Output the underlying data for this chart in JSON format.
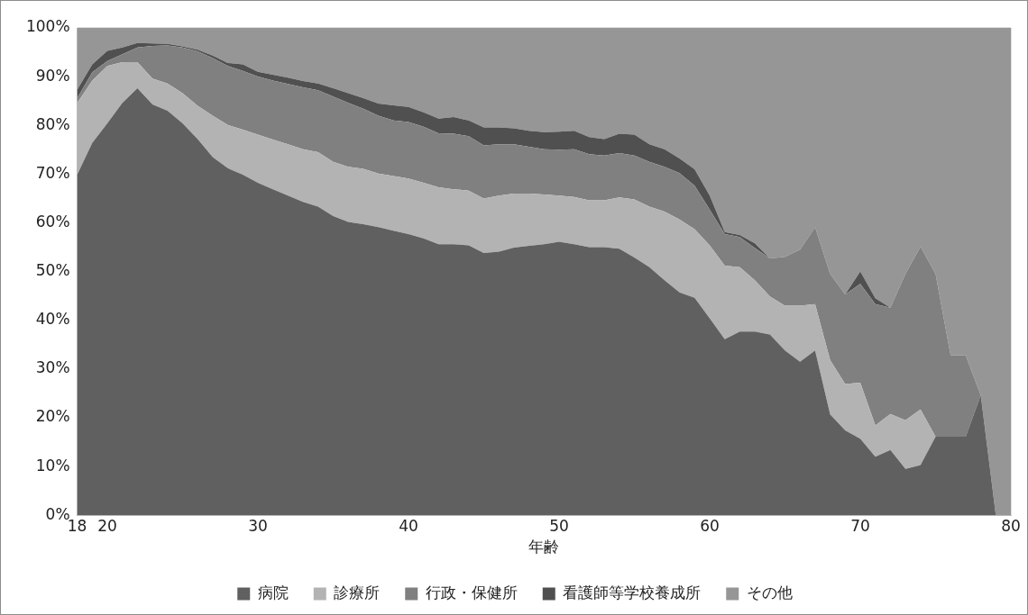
{
  "chart_data": {
    "type": "area",
    "stacked": true,
    "xlabel": "年齢",
    "legend": "bottom",
    "grid": false,
    "x": [
      18,
      19,
      20,
      21,
      22,
      23,
      24,
      25,
      26,
      27,
      28,
      29,
      30,
      31,
      32,
      33,
      34,
      35,
      36,
      37,
      38,
      39,
      40,
      41,
      42,
      43,
      44,
      45,
      46,
      47,
      48,
      49,
      50,
      51,
      52,
      53,
      54,
      55,
      56,
      57,
      58,
      59,
      60,
      61,
      62,
      63,
      64,
      65,
      66,
      67,
      68,
      69,
      70,
      71,
      72,
      73,
      74,
      75,
      76,
      77,
      78,
      79,
      80
    ],
    "xlim": [
      18,
      80
    ],
    "xticks": [
      18,
      20,
      30,
      40,
      50,
      60,
      70,
      80
    ],
    "ylim": [
      0,
      100
    ],
    "yticks": [
      {
        "value": 0,
        "label": "0%"
      },
      {
        "value": 10,
        "label": "10%"
      },
      {
        "value": 20,
        "label": "20%"
      },
      {
        "value": 30,
        "label": "30%"
      },
      {
        "value": 40,
        "label": "40%"
      },
      {
        "value": 50,
        "label": "50%"
      },
      {
        "value": 60,
        "label": "60%"
      },
      {
        "value": 70,
        "label": "70%"
      },
      {
        "value": 80,
        "label": "80%"
      },
      {
        "value": 90,
        "label": "90%"
      },
      {
        "value": 100,
        "label": "100%"
      }
    ],
    "series": [
      {
        "name": "病院",
        "color": "#606060",
        "values": [
          69.9,
          76.4,
          80.4,
          84.6,
          87.6,
          84.3,
          83.0,
          80.4,
          77.2,
          73.5,
          71.2,
          69.9,
          68.2,
          66.9,
          65.6,
          64.3,
          63.3,
          61.4,
          60.2,
          59.7,
          59.1,
          58.4,
          57.7,
          56.8,
          55.6,
          55.6,
          55.4,
          53.8,
          54.1,
          54.9,
          55.3,
          55.6,
          56.1,
          55.6,
          55.0,
          55.0,
          54.7,
          52.9,
          50.9,
          48.2,
          45.7,
          44.6,
          40.4,
          36.1,
          37.7,
          37.7,
          37.1,
          33.8,
          31.5,
          33.8,
          20.7,
          17.4,
          15.7,
          12.0,
          13.4,
          9.5,
          10.3,
          16.1,
          16.1,
          16.1,
          24.6,
          0,
          0
        ]
      },
      {
        "name": "診療所",
        "color": "#b3b3b3",
        "values": [
          14.7,
          12.8,
          11.8,
          8.4,
          5.4,
          5.3,
          5.6,
          6.2,
          6.8,
          8.5,
          8.9,
          9.2,
          9.9,
          10.2,
          10.5,
          10.8,
          11.2,
          11.1,
          11.3,
          11.4,
          11.0,
          11.2,
          11.4,
          11.4,
          11.7,
          11.3,
          11.2,
          11.2,
          11.5,
          11.1,
          10.7,
          10.2,
          9.5,
          9.7,
          9.6,
          9.6,
          10.5,
          11.9,
          12.4,
          14.1,
          15.0,
          14.1,
          15.0,
          15.1,
          13.2,
          10.5,
          7.8,
          9.2,
          11.5,
          9.5,
          11.1,
          9.5,
          11.5,
          6.4,
          7.4,
          10.0,
          11.4,
          0,
          0,
          0,
          0,
          0,
          0
        ]
      },
      {
        "name": "行政・保健所",
        "color": "#808080",
        "values": [
          1.0,
          1.7,
          1.0,
          1.6,
          3.0,
          6.7,
          7.8,
          9.4,
          11.2,
          11.8,
          12.1,
          12.1,
          11.9,
          12.1,
          12.4,
          12.7,
          12.7,
          13.4,
          13.1,
          12.3,
          11.9,
          11.4,
          11.6,
          11.5,
          11.1,
          11.4,
          11.2,
          10.9,
          10.5,
          10.1,
          9.6,
          9.3,
          9.4,
          9.8,
          9.5,
          9.2,
          9.1,
          9.0,
          9.2,
          9.2,
          9.5,
          8.9,
          7.3,
          6.5,
          6.2,
          6.6,
          7.8,
          10.0,
          11.5,
          15.8,
          17.7,
          18.4,
          20.3,
          24.9,
          21.8,
          30.0,
          33.4,
          33.4,
          16.7,
          16.7,
          0,
          0,
          0
        ]
      },
      {
        "name": "看護師等学校養成所",
        "color": "#505050",
        "values": [
          1.7,
          1.6,
          2.1,
          1.4,
          0.9,
          0.5,
          0.3,
          0.2,
          0.3,
          0.5,
          0.6,
          1.3,
          1.0,
          1.2,
          1.3,
          1.3,
          1.4,
          1.7,
          2.0,
          2.2,
          2.5,
          3.1,
          3.1,
          3.0,
          3.0,
          3.4,
          3.2,
          3.7,
          3.5,
          3.3,
          3.3,
          3.5,
          3.7,
          3.8,
          3.5,
          3.4,
          4.0,
          4.3,
          3.6,
          3.6,
          3.0,
          3.4,
          2.9,
          0.4,
          0.4,
          1.0,
          0,
          0,
          0,
          0,
          0,
          0,
          2.5,
          1.2,
          0,
          0,
          0,
          0,
          0,
          0,
          0,
          0,
          0
        ]
      },
      {
        "name": "その他",
        "color": "#969696",
        "values": [
          12.7,
          7.5,
          4.7,
          4.0,
          3.1,
          3.2,
          3.3,
          3.8,
          4.5,
          5.7,
          7.2,
          7.5,
          9.0,
          9.6,
          10.2,
          10.9,
          11.4,
          12.4,
          13.4,
          14.4,
          15.5,
          15.9,
          16.2,
          17.3,
          18.6,
          18.3,
          19.0,
          20.4,
          20.4,
          20.6,
          21.1,
          21.4,
          21.3,
          21.1,
          22.4,
          22.8,
          21.7,
          21.9,
          23.9,
          24.9,
          26.8,
          29.0,
          34.4,
          41.9,
          42.5,
          44.2,
          47.3,
          47.0,
          45.5,
          40.9,
          50.5,
          54.7,
          50.0,
          55.5,
          57.4,
          50.5,
          44.9,
          50.5,
          67.2,
          67.2,
          75.4,
          100,
          100
        ]
      }
    ]
  }
}
